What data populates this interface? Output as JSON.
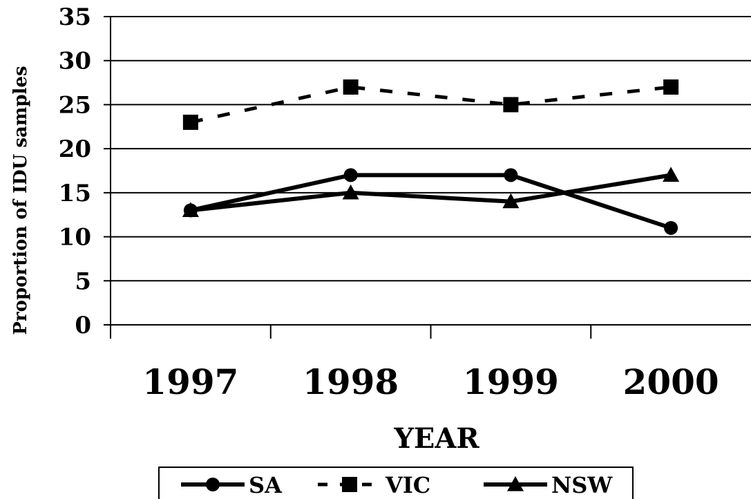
{
  "chart_data": {
    "type": "line",
    "title": "",
    "xlabel": "YEAR",
    "ylabel": "Proportion of IDU samples",
    "categories": [
      "1997",
      "1998",
      "1999",
      "2000"
    ],
    "ylim": [
      0,
      35
    ],
    "yticks": [
      0,
      5,
      10,
      15,
      20,
      25,
      30,
      35
    ],
    "grid": "horizontal",
    "legend_position": "bottom",
    "series": [
      {
        "name": "SA",
        "values": [
          13,
          17,
          17,
          11
        ],
        "marker": "circle",
        "line": "solid",
        "color": "#000000"
      },
      {
        "name": "VIC",
        "values": [
          23,
          27,
          25,
          27
        ],
        "marker": "square",
        "line": "dashed",
        "color": "#000000"
      },
      {
        "name": "NSW",
        "values": [
          13,
          15,
          14,
          17
        ],
        "marker": "triangle",
        "line": "solid",
        "color": "#000000"
      }
    ]
  }
}
